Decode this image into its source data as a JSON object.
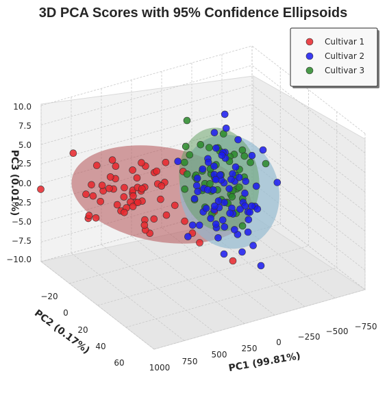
{
  "chart_data": {
    "type": "scatter",
    "subtype": "3d-scatter-with-ellipsoids",
    "title": "3D PCA Scores with 95% Confidence Ellipsoids",
    "xlabel": "PC1 (99.81%)",
    "ylabel": "PC2 (0.17%)",
    "zlabel": "PC3 (0.01%)",
    "x_ticks": [
      "1000",
      "750",
      "500",
      "250",
      "0",
      "−250",
      "−500",
      "−750"
    ],
    "y_ticks": [
      "−20",
      "0",
      "20",
      "40",
      "60"
    ],
    "z_ticks": [
      "10.0",
      "7.5",
      "5.0",
      "2.5",
      "0.0",
      "−2.5",
      "−5.0",
      "−7.5",
      "−10.0"
    ],
    "xlim": [
      1000,
      -750
    ],
    "ylim": [
      -20,
      60
    ],
    "zlim": [
      -10,
      10
    ],
    "grid": true,
    "legend_position": "top-right",
    "series": [
      {
        "name": "Cultivar 1",
        "color": "#e8262b",
        "ellipsoid_color": "#b55457",
        "approx_center": {
          "pc1": 700,
          "pc2": 15,
          "pc3": -1
        }
      },
      {
        "name": "Cultivar 2",
        "color": "#1a1af0",
        "ellipsoid_color": "#8fb8cf",
        "approx_center": {
          "pc1": 50,
          "pc2": -5,
          "pc3": 0
        }
      },
      {
        "name": "Cultivar 3",
        "color": "#2a8a2a",
        "ellipsoid_color": "#5f9e5f",
        "approx_center": {
          "pc1": 0,
          "pc2": -10,
          "pc3": 2
        }
      }
    ]
  }
}
